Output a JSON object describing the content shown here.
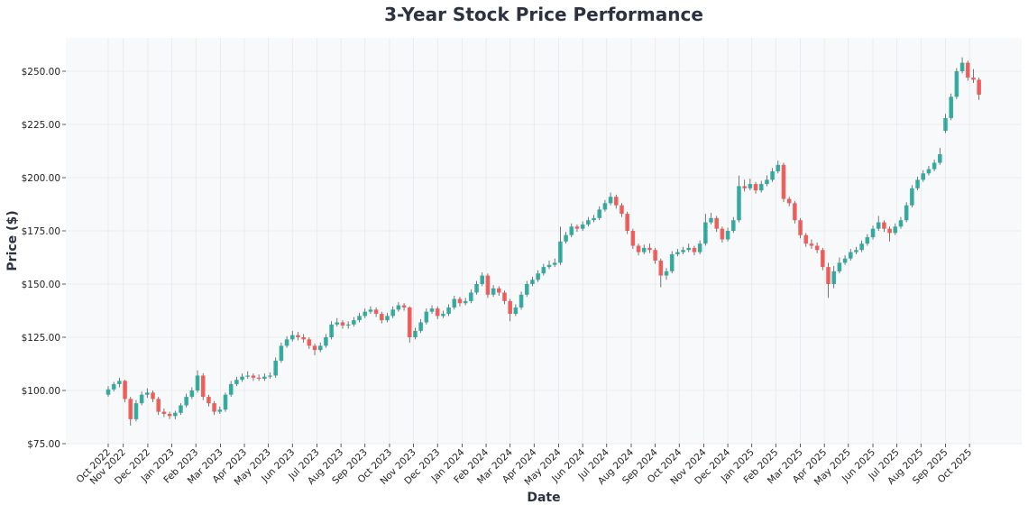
{
  "chart_data": {
    "type": "candlestick",
    "title": "3-Year Stock Price Performance",
    "xlabel": "Date",
    "ylabel": "Price ($)",
    "ylim": [
      75,
      265
    ],
    "yticks": [
      75,
      100,
      125,
      150,
      175,
      200,
      225,
      250
    ],
    "ytick_labels": [
      "$75.00",
      "$100.00",
      "$125.00",
      "$150.00",
      "$175.00",
      "$200.00",
      "$225.00",
      "$250.00"
    ],
    "grid": true,
    "colors": {
      "up": "#26a69a",
      "down": "#ef5350",
      "background": "#f8f9fa",
      "grid": "#e6e8eb"
    },
    "candle_interval": "weekly (approximate)",
    "xticks": [
      0,
      2.7,
      7.1,
      11.4,
      15.7,
      20.1,
      24.4,
      28.7,
      33.0,
      37.4,
      41.7,
      46.0,
      50.4,
      54.7,
      59.0,
      63.4,
      67.7,
      72.0,
      76.3,
      80.7,
      85.0,
      89.3,
      93.7,
      98.0,
      102.3,
      106.7,
      111.0,
      115.3,
      119.6,
      124.0,
      128.3,
      132.6,
      137.0,
      141.3,
      145.6,
      150.0,
      154.3
    ],
    "xtick_labels": [
      "Oct 2022",
      "Nov 2022",
      "Dec 2022",
      "Jan 2023",
      "Feb 2023",
      "Mar 2023",
      "Apr 2023",
      "May 2023",
      "Jun 2023",
      "Jul 2023",
      "Aug 2023",
      "Sep 2023",
      "Oct 2023",
      "Nov 2023",
      "Dec 2023",
      "Jan 2024",
      "Feb 2024",
      "Mar 2024",
      "Apr 2024",
      "May 2024",
      "Jun 2024",
      "Jul 2024",
      "Aug 2024",
      "Sep 2024",
      "Oct 2024",
      "Nov 2024",
      "Dec 2024",
      "Jan 2025",
      "Feb 2025",
      "Mar 2025",
      "Apr 2025",
      "May 2025",
      "Jun 2025",
      "Jul 2025",
      "Aug 2025",
      "Sep 2025",
      "Oct 2025"
    ],
    "ohlc_columns": [
      "open",
      "high",
      "low",
      "close"
    ],
    "ohlc": [
      [
        98,
        102,
        97,
        100.5
      ],
      [
        100.5,
        104,
        99.5,
        103
      ],
      [
        103,
        106,
        101.5,
        104.5
      ],
      [
        104.5,
        105,
        94.5,
        96
      ],
      [
        96,
        97,
        83.5,
        86.5
      ],
      [
        86.5,
        95.5,
        85.5,
        94
      ],
      [
        94,
        99.5,
        93,
        98
      ],
      [
        98,
        101,
        96.5,
        99
      ],
      [
        99,
        100,
        94.5,
        96
      ],
      [
        96,
        97,
        88.5,
        90
      ],
      [
        90,
        91.5,
        87.5,
        89
      ],
      [
        89,
        90,
        86.5,
        88
      ],
      [
        88,
        90.5,
        86.5,
        89.5
      ],
      [
        89.5,
        94,
        88.5,
        93
      ],
      [
        93,
        98.5,
        92,
        97
      ],
      [
        97,
        101.5,
        96,
        100
      ],
      [
        100,
        109.5,
        99,
        107
      ],
      [
        107,
        108,
        95.5,
        97
      ],
      [
        97,
        98,
        92.5,
        94
      ],
      [
        94,
        95,
        88.5,
        90
      ],
      [
        90,
        92.5,
        89,
        91
      ],
      [
        91,
        99,
        90,
        98
      ],
      [
        98,
        104.5,
        97,
        103
      ],
      [
        103,
        106.5,
        102,
        105
      ],
      [
        105,
        108,
        104,
        106.5
      ],
      [
        106.5,
        109,
        105.5,
        107
      ],
      [
        107,
        108,
        104.5,
        106
      ],
      [
        106,
        107.5,
        104.5,
        105.5
      ],
      [
        105.5,
        108,
        104.5,
        106.5
      ],
      [
        106.5,
        108.5,
        105.5,
        107
      ],
      [
        107,
        115.5,
        106,
        114
      ],
      [
        114,
        122.5,
        113,
        121
      ],
      [
        121,
        125.5,
        120,
        124
      ],
      [
        124,
        128,
        123,
        126
      ],
      [
        126,
        127.5,
        123.5,
        125
      ],
      [
        125,
        126.5,
        122.5,
        124
      ],
      [
        124,
        125,
        119.5,
        121
      ],
      [
        121,
        122,
        116.5,
        119
      ],
      [
        119,
        122.5,
        118,
        121
      ],
      [
        121,
        126.5,
        120,
        125
      ],
      [
        125,
        132.5,
        124,
        131
      ],
      [
        131,
        134,
        130,
        132
      ],
      [
        132,
        133,
        129,
        130.5
      ],
      [
        130.5,
        132.5,
        129,
        131
      ],
      [
        131,
        134.5,
        130,
        133
      ],
      [
        133,
        136.5,
        132,
        135
      ],
      [
        135,
        138.5,
        134,
        137
      ],
      [
        137,
        139.5,
        136,
        138
      ],
      [
        138,
        139,
        134.5,
        136
      ],
      [
        136,
        137,
        131.5,
        133
      ],
      [
        133,
        136.5,
        132,
        135
      ],
      [
        135,
        139.5,
        134,
        138
      ],
      [
        138,
        141.5,
        137,
        140
      ],
      [
        140,
        141,
        137.5,
        139
      ],
      [
        139,
        139.5,
        122.5,
        125
      ],
      [
        125,
        129.5,
        124,
        128
      ],
      [
        128,
        133.5,
        127,
        132
      ],
      [
        132,
        138.5,
        131,
        137
      ],
      [
        137,
        140,
        136,
        138.5
      ],
      [
        138.5,
        139.5,
        133.5,
        135
      ],
      [
        135,
        137.5,
        134,
        136
      ],
      [
        136,
        140.5,
        135,
        139
      ],
      [
        139,
        144.5,
        138,
        143
      ],
      [
        143,
        144,
        139.5,
        141
      ],
      [
        141,
        143.5,
        140,
        142
      ],
      [
        142,
        147.5,
        141,
        146
      ],
      [
        146,
        151.5,
        145,
        150
      ],
      [
        150,
        155.5,
        149,
        154
      ],
      [
        154,
        155,
        143.5,
        145
      ],
      [
        145,
        149.5,
        144,
        148
      ],
      [
        148,
        149,
        144.5,
        146
      ],
      [
        146,
        147,
        140.5,
        142
      ],
      [
        142,
        143,
        132.5,
        136
      ],
      [
        136,
        140.5,
        135,
        139
      ],
      [
        139,
        146.5,
        138,
        145
      ],
      [
        145,
        151.5,
        144,
        150
      ],
      [
        150,
        153.5,
        149,
        152
      ],
      [
        152,
        156.5,
        151,
        155
      ],
      [
        155,
        159.5,
        154,
        158
      ],
      [
        158,
        161,
        157,
        159
      ],
      [
        159,
        162,
        158,
        160
      ],
      [
        160,
        177,
        159,
        170
      ],
      [
        170,
        174.5,
        169,
        173
      ],
      [
        173,
        178.5,
        172,
        177
      ],
      [
        177,
        178,
        174.5,
        176
      ],
      [
        176,
        179.5,
        175,
        178
      ],
      [
        178,
        181.5,
        177,
        180
      ],
      [
        180,
        182.5,
        179,
        181
      ],
      [
        181,
        186.5,
        180,
        185
      ],
      [
        185,
        189.5,
        184,
        188
      ],
      [
        188,
        193,
        187,
        191
      ],
      [
        191,
        192,
        185.5,
        187
      ],
      [
        187,
        188,
        181.5,
        183
      ],
      [
        183,
        184,
        173.5,
        175
      ],
      [
        175,
        176,
        166.5,
        168
      ],
      [
        168,
        169,
        163.5,
        165
      ],
      [
        165,
        168.5,
        164,
        167
      ],
      [
        167,
        169,
        164.5,
        166
      ],
      [
        166,
        167,
        159.5,
        161
      ],
      [
        161,
        162,
        148.5,
        154
      ],
      [
        154,
        157.5,
        152,
        156
      ],
      [
        156,
        165.5,
        155,
        164
      ],
      [
        164,
        166.5,
        163,
        165
      ],
      [
        165,
        167.5,
        164,
        166
      ],
      [
        166,
        169,
        165,
        167
      ],
      [
        167,
        168,
        163.5,
        165
      ],
      [
        165,
        170.5,
        164,
        169
      ],
      [
        169,
        183,
        168,
        179
      ],
      [
        179,
        183.5,
        178,
        181
      ],
      [
        181,
        182,
        174.5,
        176
      ],
      [
        176,
        177,
        169.5,
        171
      ],
      [
        171,
        176.5,
        170,
        175
      ],
      [
        175,
        181.5,
        174,
        180
      ],
      [
        180,
        201,
        179,
        196
      ],
      [
        196,
        199,
        193.5,
        195
      ],
      [
        195,
        199.5,
        194,
        197
      ],
      [
        197,
        198,
        192.5,
        194
      ],
      [
        194,
        198.5,
        193,
        197
      ],
      [
        197,
        201,
        196,
        199
      ],
      [
        199,
        204.5,
        198,
        203
      ],
      [
        203,
        208,
        202,
        206
      ],
      [
        206,
        207,
        188.5,
        190
      ],
      [
        190,
        191,
        186.5,
        188
      ],
      [
        188,
        189,
        178.5,
        180
      ],
      [
        180,
        181,
        171.5,
        173
      ],
      [
        173,
        174,
        167.5,
        169
      ],
      [
        169,
        171,
        166.5,
        168
      ],
      [
        168,
        169.5,
        164.5,
        166
      ],
      [
        166,
        167,
        156.5,
        158
      ],
      [
        158,
        160,
        143.5,
        150
      ],
      [
        150,
        158.5,
        148,
        156
      ],
      [
        156,
        162.5,
        155,
        160
      ],
      [
        160,
        163.5,
        159,
        162
      ],
      [
        162,
        166.5,
        161,
        165
      ],
      [
        165,
        167.5,
        164,
        166
      ],
      [
        166,
        170.5,
        165,
        169
      ],
      [
        169,
        173.5,
        168,
        172
      ],
      [
        172,
        177.5,
        171,
        176
      ],
      [
        176,
        182,
        175,
        179
      ],
      [
        179,
        180,
        174.5,
        176
      ],
      [
        176,
        177,
        170,
        174
      ],
      [
        174,
        178.5,
        173,
        177
      ],
      [
        177,
        181.5,
        176,
        180
      ],
      [
        180,
        188.5,
        179,
        187
      ],
      [
        187,
        196.5,
        186,
        195
      ],
      [
        195,
        200.5,
        194,
        199
      ],
      [
        199,
        203.5,
        198,
        202
      ],
      [
        202,
        205.5,
        201,
        204
      ],
      [
        204,
        208.5,
        203,
        207
      ],
      [
        207,
        214,
        206,
        211
      ],
      [
        222,
        230,
        221,
        228
      ],
      [
        228,
        239.5,
        227,
        238
      ],
      [
        238,
        251.5,
        237,
        250
      ],
      [
        250,
        256.5,
        249,
        254
      ],
      [
        254,
        255,
        245.5,
        247
      ],
      [
        247,
        251,
        244.5,
        246
      ],
      [
        246,
        247,
        236.5,
        239
      ]
    ]
  }
}
